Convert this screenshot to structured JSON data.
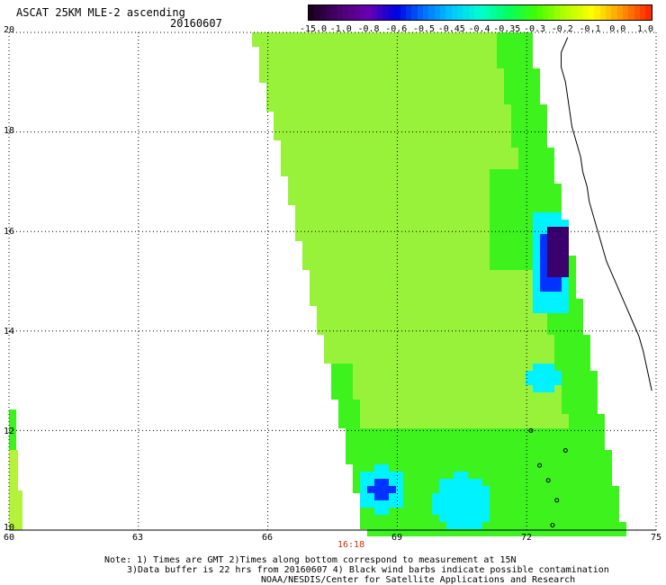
{
  "header": {
    "title": "ASCAT 25KM MLE-2 ascending",
    "date": "20160607"
  },
  "map": {
    "x_ticks": [
      "60",
      "63",
      "66",
      "69",
      "72",
      "75"
    ],
    "y_ticks": [
      "20",
      "18",
      "16",
      "14",
      "12",
      "10"
    ],
    "x_range": [
      60,
      75
    ],
    "y_range": [
      10,
      20
    ],
    "pass_time": "16:18",
    "pass_time_lon": 68.0
  },
  "colorbar": {
    "labels": [
      "-15.0",
      "-1.0",
      "-0.8",
      "-0.6",
      "-0.5",
      "-0.45",
      "-0.4",
      "-0.35",
      "-0.3",
      "-0.2",
      "-0.1",
      "0.0",
      "1.0"
    ],
    "colors": [
      "#1a0020",
      "#4a0070",
      "#6a00b0",
      "#0000e0",
      "#0070ff",
      "#00c8ff",
      "#00ffd0",
      "#00ff60",
      "#40ff00",
      "#b0ff00",
      "#ffff00",
      "#ff9a00",
      "#ff2a00"
    ]
  },
  "notes": {
    "line1": "Note: 1) Times are GMT 2)Times along bottom correspond to measurement at 15N",
    "line2": "3)Data buffer is 22 hrs from 20160607 4) Black wind barbs indicate possible contamination",
    "line3": "NOAA/NESDIS/Center for Satellite Applications and Research"
  },
  "swath_colors": {
    "main": "#98f23a",
    "light": "#b4f23c",
    "green": "#3ef21e",
    "cyan": "#00f2ff",
    "blue": "#0033ff",
    "purple": "#3a006e",
    "coast": "#000000"
  }
}
